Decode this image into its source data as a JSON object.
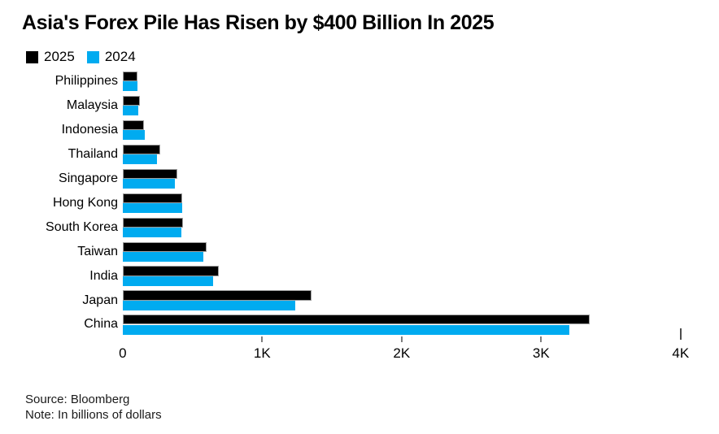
{
  "title": "Asia's Forex Pile Has Risen by $400 Billion In 2025",
  "legend": {
    "items": [
      {
        "label": "2025",
        "color": "#000000"
      },
      {
        "label": "2024",
        "color": "#00abf0"
      }
    ]
  },
  "chart_data": {
    "type": "bar",
    "orientation": "horizontal",
    "title": "Asia's Forex Pile Has Risen by $400 Billion In 2025",
    "categories": [
      "Philippines",
      "Malaysia",
      "Indonesia",
      "Thailand",
      "Singapore",
      "Hong Kong",
      "South Korea",
      "Taiwan",
      "India",
      "Japan",
      "China"
    ],
    "series": [
      {
        "name": "2025",
        "color": "#000000",
        "values": [
          107,
          121,
          152,
          268,
          392,
          428,
          432,
          600,
          690,
          1350,
          3345
        ]
      },
      {
        "name": "2024",
        "color": "#00abf0",
        "values": [
          103,
          113,
          158,
          243,
          374,
          423,
          419,
          578,
          648,
          1235,
          3200
        ]
      }
    ],
    "xlim": [
      0,
      4000
    ],
    "xticks": [
      {
        "label": "0",
        "value": 0
      },
      {
        "label": "1K",
        "value": 1000
      },
      {
        "label": "2K",
        "value": 2000
      },
      {
        "label": "3K",
        "value": 3000
      },
      {
        "label": "4K",
        "value": 4000
      }
    ],
    "legend_position": "top-left",
    "grid": false,
    "units": "billions of dollars"
  },
  "footer": {
    "source": "Source: Bloomberg",
    "note": "Note: In billions of dollars"
  }
}
